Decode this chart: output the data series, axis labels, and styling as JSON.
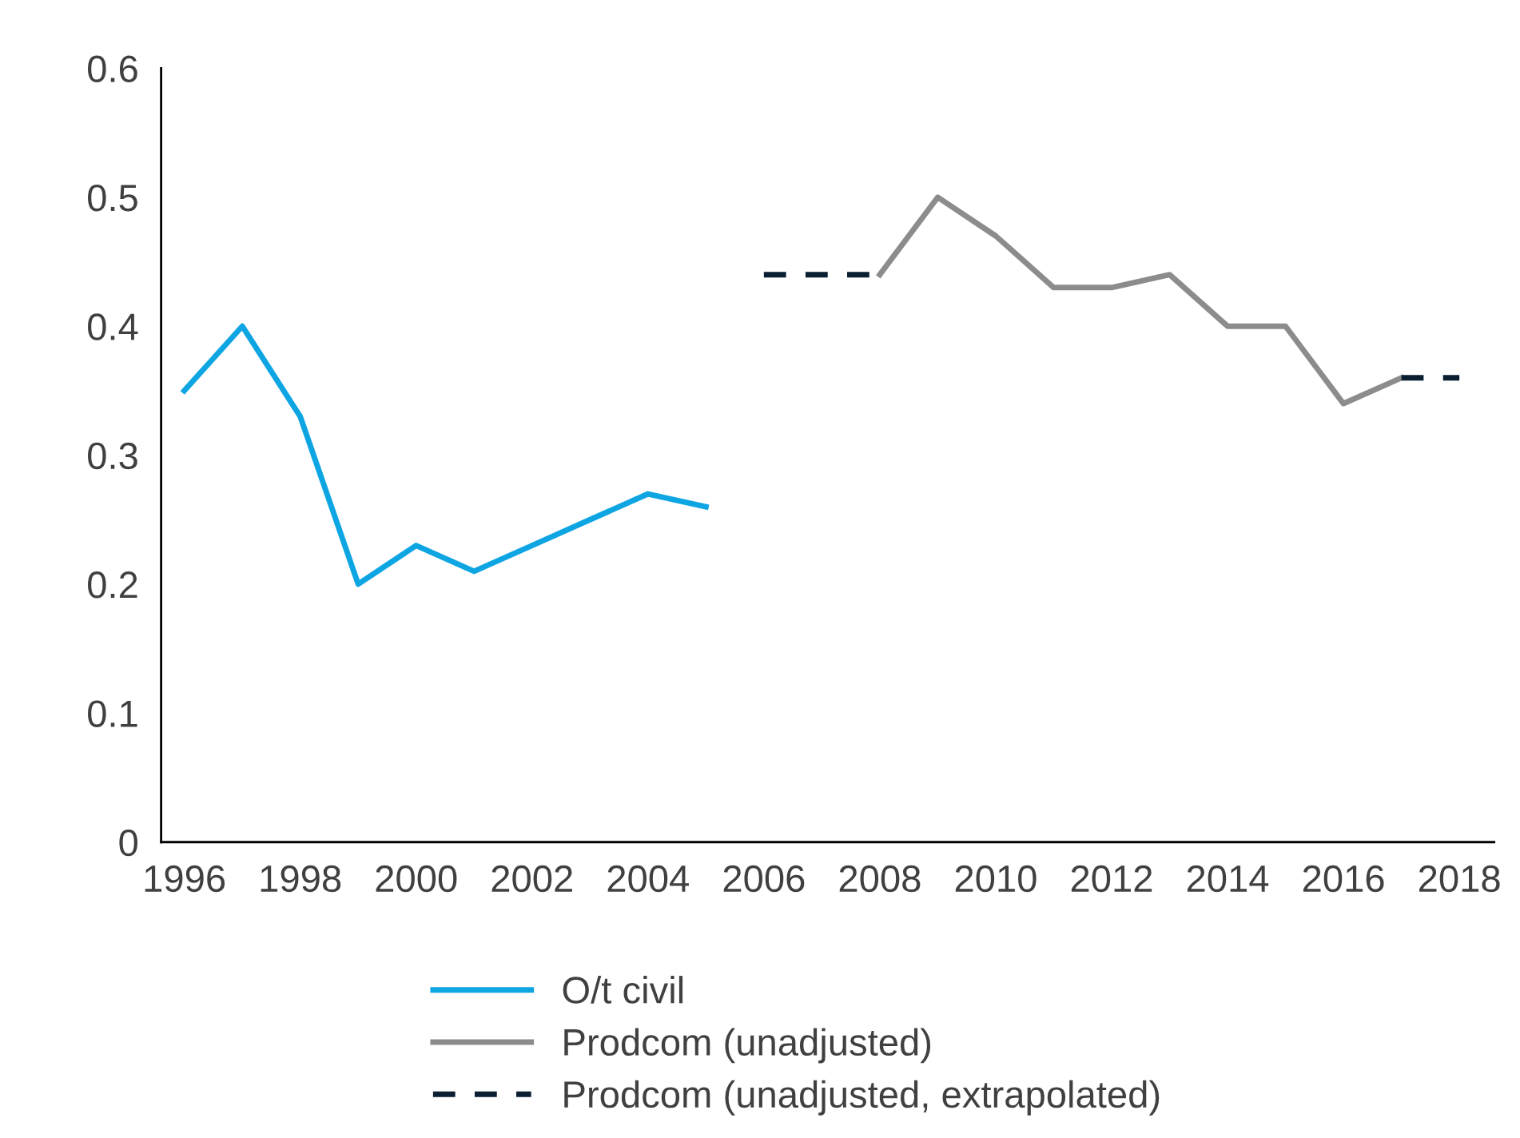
{
  "chart_data": {
    "type": "line",
    "xlim": [
      1995.6,
      2018.6
    ],
    "xticks": [
      1996,
      1998,
      2000,
      2002,
      2004,
      2006,
      2008,
      2010,
      2012,
      2014,
      2016,
      2018
    ],
    "ylim": [
      0,
      0.6
    ],
    "yticks": [
      0,
      0.1,
      0.2,
      0.3,
      0.4,
      0.5,
      0.6
    ],
    "grid": false,
    "legend": "bottom",
    "marker": "none",
    "series": [
      {
        "name": "O/t civil",
        "color": "#0ea5e3",
        "line_style": "solid",
        "x": [
          1996,
          1997,
          1998,
          1999,
          2000,
          2001,
          2002,
          2003,
          2004,
          2005
        ],
        "values": [
          0.35,
          0.4,
          0.33,
          0.2,
          0.23,
          0.21,
          0.23,
          0.25,
          0.27,
          0.26
        ]
      },
      {
        "name": "Prodcom (unadjusted)",
        "color": "#8c8c8c",
        "line_style": "solid",
        "x": [
          2008,
          2009,
          2010,
          2011,
          2012,
          2013,
          2014,
          2015,
          2016,
          2017
        ],
        "values": [
          0.44,
          0.5,
          0.47,
          0.43,
          0.43,
          0.44,
          0.4,
          0.4,
          0.34,
          0.36
        ]
      },
      {
        "name": "Prodcom (unadjusted, extrapolated)",
        "color": "#0b1f33",
        "line_style": "dashed",
        "x": [
          2006,
          2007,
          2008,
          null,
          2017,
          2018
        ],
        "values": [
          0.44,
          0.44,
          0.44,
          null,
          0.36,
          0.36
        ]
      }
    ]
  }
}
